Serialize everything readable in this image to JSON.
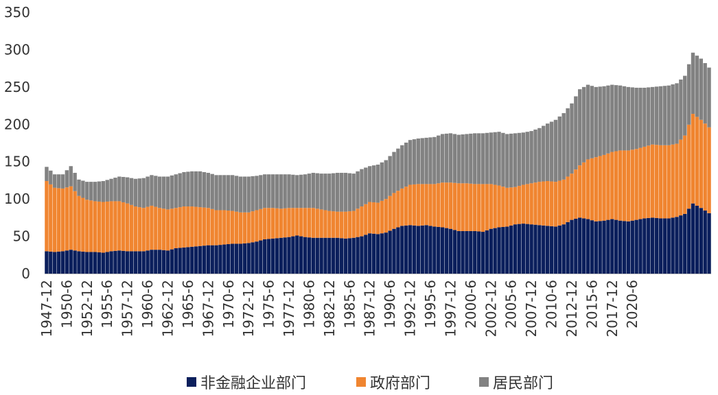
{
  "chart_data": {
    "type": "area",
    "stacked": true,
    "title": "",
    "xlabel": "",
    "ylabel": "",
    "ylim": [
      0,
      350
    ],
    "yticks": [
      0,
      50,
      100,
      150,
      200,
      250,
      300,
      350
    ],
    "x_start": "1947-12",
    "x_step_months": 6,
    "xticks": [
      "1947-12",
      "1950-6",
      "1952-12",
      "1955-6",
      "1957-12",
      "1960-6",
      "1962-12",
      "1965-6",
      "1967-12",
      "1970-6",
      "1972-12",
      "1975-6",
      "1977-12",
      "1980-6",
      "1982-12",
      "1985-6",
      "1987-12",
      "1990-6",
      "1992-12",
      "1995-6",
      "1997-12",
      "2000-6",
      "2002-12",
      "2005-6",
      "2007-12",
      "2010-6",
      "2012-12",
      "2015-6",
      "2017-12",
      "2020-6"
    ],
    "legend_position": "bottom",
    "series": [
      {
        "name": "非金融企业部门",
        "color": "#0b1f5c",
        "anchors": [
          [
            0,
            30
          ],
          [
            2,
            29
          ],
          [
            4,
            30
          ],
          [
            6,
            32
          ],
          [
            8,
            30
          ],
          [
            10,
            29
          ],
          [
            12,
            29
          ],
          [
            14,
            28
          ],
          [
            16,
            30
          ],
          [
            18,
            31
          ],
          [
            20,
            30
          ],
          [
            22,
            30
          ],
          [
            24,
            30
          ],
          [
            26,
            32
          ],
          [
            28,
            32
          ],
          [
            30,
            31
          ],
          [
            32,
            34
          ],
          [
            34,
            35
          ],
          [
            36,
            36
          ],
          [
            38,
            37
          ],
          [
            40,
            38
          ],
          [
            42,
            38
          ],
          [
            44,
            39
          ],
          [
            46,
            40
          ],
          [
            48,
            40
          ],
          [
            50,
            41
          ],
          [
            52,
            43
          ],
          [
            54,
            46
          ],
          [
            56,
            47
          ],
          [
            58,
            48
          ],
          [
            60,
            49
          ],
          [
            62,
            51
          ],
          [
            64,
            49
          ],
          [
            66,
            48
          ],
          [
            68,
            48
          ],
          [
            70,
            48
          ],
          [
            72,
            48
          ],
          [
            74,
            47
          ],
          [
            76,
            48
          ],
          [
            78,
            50
          ],
          [
            80,
            54
          ],
          [
            82,
            53
          ],
          [
            84,
            55
          ],
          [
            86,
            60
          ],
          [
            88,
            64
          ],
          [
            90,
            65
          ],
          [
            92,
            64
          ],
          [
            94,
            65
          ],
          [
            96,
            63
          ],
          [
            98,
            62
          ],
          [
            100,
            60
          ],
          [
            102,
            57
          ],
          [
            104,
            57
          ],
          [
            106,
            57
          ],
          [
            108,
            56
          ],
          [
            110,
            60
          ],
          [
            112,
            62
          ],
          [
            114,
            63
          ],
          [
            116,
            66
          ],
          [
            118,
            67
          ],
          [
            120,
            66
          ],
          [
            122,
            65
          ],
          [
            124,
            64
          ],
          [
            126,
            63
          ],
          [
            128,
            66
          ],
          [
            130,
            72
          ],
          [
            132,
            75
          ],
          [
            134,
            73
          ],
          [
            136,
            70
          ],
          [
            138,
            71
          ],
          [
            140,
            73
          ],
          [
            142,
            71
          ],
          [
            144,
            70
          ],
          [
            146,
            72
          ],
          [
            148,
            74
          ],
          [
            150,
            75
          ],
          [
            152,
            74
          ],
          [
            154,
            74
          ],
          [
            156,
            76
          ],
          [
            158,
            80
          ],
          [
            160,
            94
          ],
          [
            162,
            88
          ],
          [
            164,
            81
          ]
        ]
      },
      {
        "name": "政府部门",
        "color": "#f08530",
        "anchors": [
          [
            0,
            94
          ],
          [
            2,
            86
          ],
          [
            4,
            84
          ],
          [
            6,
            85
          ],
          [
            8,
            74
          ],
          [
            10,
            70
          ],
          [
            12,
            68
          ],
          [
            14,
            68
          ],
          [
            16,
            67
          ],
          [
            18,
            66
          ],
          [
            20,
            64
          ],
          [
            22,
            60
          ],
          [
            24,
            58
          ],
          [
            26,
            59
          ],
          [
            28,
            56
          ],
          [
            30,
            55
          ],
          [
            32,
            54
          ],
          [
            34,
            55
          ],
          [
            36,
            54
          ],
          [
            38,
            52
          ],
          [
            40,
            50
          ],
          [
            42,
            47
          ],
          [
            44,
            46
          ],
          [
            46,
            44
          ],
          [
            48,
            42
          ],
          [
            50,
            41
          ],
          [
            52,
            42
          ],
          [
            54,
            42
          ],
          [
            56,
            41
          ],
          [
            58,
            39
          ],
          [
            60,
            39
          ],
          [
            62,
            37
          ],
          [
            64,
            39
          ],
          [
            66,
            40
          ],
          [
            68,
            38
          ],
          [
            70,
            36
          ],
          [
            72,
            35
          ],
          [
            74,
            36
          ],
          [
            76,
            36
          ],
          [
            78,
            40
          ],
          [
            80,
            42
          ],
          [
            82,
            42
          ],
          [
            84,
            45
          ],
          [
            86,
            48
          ],
          [
            88,
            50
          ],
          [
            90,
            54
          ],
          [
            92,
            56
          ],
          [
            94,
            55
          ],
          [
            96,
            57
          ],
          [
            98,
            60
          ],
          [
            100,
            62
          ],
          [
            102,
            64
          ],
          [
            104,
            64
          ],
          [
            106,
            63
          ],
          [
            108,
            64
          ],
          [
            110,
            60
          ],
          [
            112,
            56
          ],
          [
            114,
            52
          ],
          [
            116,
            50
          ],
          [
            118,
            52
          ],
          [
            120,
            55
          ],
          [
            122,
            58
          ],
          [
            124,
            60
          ],
          [
            126,
            60
          ],
          [
            128,
            60
          ],
          [
            130,
            62
          ],
          [
            132,
            70
          ],
          [
            134,
            80
          ],
          [
            136,
            86
          ],
          [
            138,
            88
          ],
          [
            140,
            90
          ],
          [
            142,
            94
          ],
          [
            144,
            95
          ],
          [
            146,
            95
          ],
          [
            148,
            96
          ],
          [
            150,
            98
          ],
          [
            152,
            98
          ],
          [
            154,
            98
          ],
          [
            156,
            98
          ],
          [
            158,
            105
          ],
          [
            160,
            120
          ],
          [
            162,
            118
          ],
          [
            164,
            115
          ]
        ]
      },
      {
        "name": "居民部门",
        "color": "#828282",
        "anchors": [
          [
            0,
            19
          ],
          [
            2,
            18
          ],
          [
            4,
            19
          ],
          [
            6,
            27
          ],
          [
            8,
            22
          ],
          [
            10,
            24
          ],
          [
            12,
            26
          ],
          [
            14,
            28
          ],
          [
            16,
            30
          ],
          [
            18,
            33
          ],
          [
            20,
            35
          ],
          [
            22,
            37
          ],
          [
            24,
            40
          ],
          [
            26,
            41
          ],
          [
            28,
            42
          ],
          [
            30,
            44
          ],
          [
            32,
            45
          ],
          [
            34,
            46
          ],
          [
            36,
            47
          ],
          [
            38,
            48
          ],
          [
            40,
            47
          ],
          [
            42,
            47
          ],
          [
            44,
            47
          ],
          [
            46,
            48
          ],
          [
            48,
            48
          ],
          [
            50,
            48
          ],
          [
            52,
            46
          ],
          [
            54,
            45
          ],
          [
            56,
            45
          ],
          [
            58,
            46
          ],
          [
            60,
            45
          ],
          [
            62,
            44
          ],
          [
            64,
            45
          ],
          [
            66,
            47
          ],
          [
            68,
            48
          ],
          [
            70,
            50
          ],
          [
            72,
            52
          ],
          [
            74,
            52
          ],
          [
            76,
            50
          ],
          [
            78,
            50
          ],
          [
            80,
            48
          ],
          [
            82,
            51
          ],
          [
            84,
            52
          ],
          [
            86,
            55
          ],
          [
            88,
            58
          ],
          [
            90,
            60
          ],
          [
            92,
            61
          ],
          [
            94,
            62
          ],
          [
            96,
            63
          ],
          [
            98,
            65
          ],
          [
            100,
            66
          ],
          [
            102,
            65
          ],
          [
            104,
            66
          ],
          [
            106,
            68
          ],
          [
            108,
            68
          ],
          [
            110,
            69
          ],
          [
            112,
            72
          ],
          [
            114,
            72
          ],
          [
            116,
            72
          ],
          [
            118,
            70
          ],
          [
            120,
            70
          ],
          [
            122,
            72
          ],
          [
            124,
            77
          ],
          [
            126,
            83
          ],
          [
            128,
            89
          ],
          [
            130,
            94
          ],
          [
            132,
            102
          ],
          [
            134,
            100
          ],
          [
            136,
            94
          ],
          [
            138,
            92
          ],
          [
            140,
            90
          ],
          [
            142,
            87
          ],
          [
            144,
            85
          ],
          [
            146,
            82
          ],
          [
            148,
            79
          ],
          [
            150,
            77
          ],
          [
            152,
            79
          ],
          [
            154,
            80
          ],
          [
            156,
            81
          ],
          [
            158,
            80
          ],
          [
            160,
            82
          ],
          [
            162,
            82
          ],
          [
            164,
            80
          ]
        ]
      }
    ]
  }
}
